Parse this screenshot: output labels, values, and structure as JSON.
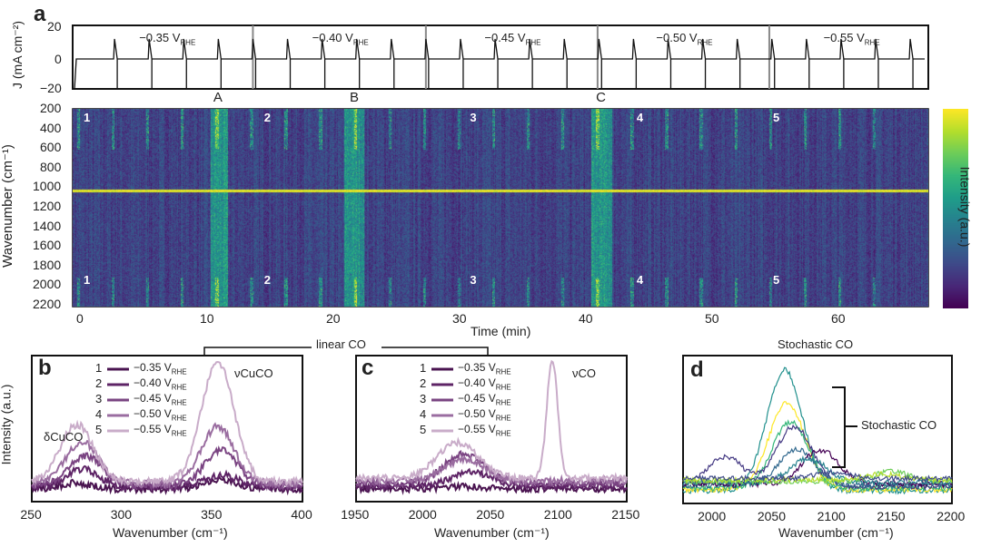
{
  "panel_letters": {
    "a": "a",
    "b": "b",
    "c": "c",
    "d": "d"
  },
  "colors": {
    "frame": "#111111",
    "separator": "#888888",
    "box": "#ffffff"
  },
  "chart_data": [
    {
      "id": "a-current",
      "type": "line",
      "ylabel": "J (mA cm⁻²)",
      "ylim": [
        -20,
        20
      ],
      "yticks": [
        "20",
        "0",
        "−20"
      ],
      "xlim": [
        0,
        67.5
      ],
      "potential_labels": [
        "−0.35 V",
        "−0.40 V",
        "−0.45 V",
        "−0.50 V",
        "−0.55 V"
      ],
      "potential_subscript": "RHE",
      "segment_boundaries_min": [
        13.7,
        27.4,
        41.0,
        54.6
      ],
      "pulse_period_min": 2.74,
      "pulse_peak": 13,
      "pulse_min": -20,
      "baseline": 0,
      "markers": [
        {
          "label": "A",
          "t": 11
        },
        {
          "label": "B",
          "t": 21.8
        },
        {
          "label": "C",
          "t": 41.3
        }
      ]
    },
    {
      "id": "a-heatmap",
      "type": "heatmap",
      "xlabel": "Time (min)",
      "ylabel": "Wavenumber (cm⁻¹)",
      "xticks": [
        "0",
        "10",
        "20",
        "30",
        "40",
        "50",
        "60"
      ],
      "yticks": [
        "200",
        "400",
        "600",
        "800",
        "1000",
        "1200",
        "1400",
        "1600",
        "1800",
        "2000",
        "2200"
      ],
      "xlim": [
        0,
        67.5
      ],
      "ylim": [
        200,
        2250
      ],
      "colorbar_label": "Intensity (a.u.)",
      "colormap": "viridis",
      "bright_band_min": 1050,
      "bright_columns": [
        {
          "t0": 10.3,
          "t1": 11.7
        },
        {
          "t0": 20.9,
          "t1": 22.5
        },
        {
          "t0": 40.5,
          "t1": 42.1
        }
      ],
      "boxes": [
        {
          "label": "1",
          "t0": 0,
          "t1": 2.5
        },
        {
          "label": "2",
          "t0": 14.3,
          "t1": 15.8
        },
        {
          "label": "3",
          "t0": 30.6,
          "t1": 32.6
        },
        {
          "label": "4",
          "t0": 43.8,
          "t1": 46.2
        },
        {
          "label": "5",
          "t0": 54.6,
          "t1": 57.3
        }
      ]
    },
    {
      "id": "b",
      "type": "line",
      "xlabel": "Wavenumber (cm⁻¹)",
      "ylabel": "Intensity (a.u.)",
      "xlim": [
        250,
        400
      ],
      "xticks": [
        "250",
        "300",
        "350",
        "400"
      ],
      "annotations": [
        "δCuCO",
        "νCuCO"
      ],
      "series": [
        {
          "num": "1",
          "name": "−0.35 V",
          "color": "#4a1450",
          "peaks": [
            [
              275,
              0.05
            ],
            [
              355,
              0.08
            ]
          ]
        },
        {
          "num": "2",
          "name": "−0.40 V",
          "color": "#5e2466",
          "peaks": [
            [
              278,
              0.15
            ],
            [
              355,
              0.1
            ]
          ]
        },
        {
          "num": "3",
          "name": "−0.45 V",
          "color": "#7a4482",
          "peaks": [
            [
              280,
              0.25
            ],
            [
              355,
              0.3
            ]
          ]
        },
        {
          "num": "4",
          "name": "−0.50 V",
          "color": "#9a6da0",
          "peaks": [
            [
              278,
              0.35
            ],
            [
              353,
              0.48
            ]
          ]
        },
        {
          "num": "5",
          "name": "−0.55 V",
          "color": "#c9acc9",
          "peaks": [
            [
              275,
              0.48
            ],
            [
              353,
              1.0
            ]
          ]
        }
      ]
    },
    {
      "id": "c",
      "type": "line",
      "xlabel": "Wavenumber (cm⁻¹)",
      "xlim": [
        1950,
        2150
      ],
      "xticks": [
        "1950",
        "2000",
        "2050",
        "2100",
        "2150"
      ],
      "annotations": [
        "νCO"
      ],
      "series": [
        {
          "num": "1",
          "name": "−0.35 V",
          "color": "#4a1450",
          "peaks": [
            [
              2030,
              0.02
            ]
          ]
        },
        {
          "num": "2",
          "name": "−0.40 V",
          "color": "#5e2466",
          "peaks": [
            [
              2035,
              0.12
            ]
          ]
        },
        {
          "num": "3",
          "name": "−0.45 V",
          "color": "#7a4482",
          "peaks": [
            [
              2030,
              0.25
            ]
          ]
        },
        {
          "num": "4",
          "name": "−0.50 V",
          "color": "#9a6da0",
          "peaks": [
            [
              2030,
              0.18
            ]
          ]
        },
        {
          "num": "5",
          "name": "−0.55 V",
          "color": "#c9acc9",
          "peaks": [
            [
              2025,
              0.3
            ],
            [
              2095,
              1.0
            ]
          ]
        }
      ]
    },
    {
      "id": "d",
      "type": "line",
      "title": "Stochastic CO",
      "xlabel": "Wavenumber (cm⁻¹)",
      "xlim": [
        1975,
        2200
      ],
      "xticks": [
        "2000",
        "2050",
        "2100",
        "2150",
        "2200"
      ],
      "annotations": [
        "Stochastic CO"
      ],
      "series": [
        {
          "color": "#21908d",
          "peaks": [
            [
              2060,
              1.0
            ]
          ]
        },
        {
          "color": "#fde725",
          "peaks": [
            [
              2062,
              0.72
            ]
          ]
        },
        {
          "color": "#35b779",
          "peaks": [
            [
              2065,
              0.55
            ]
          ]
        },
        {
          "color": "#443983",
          "peaks": [
            [
              2068,
              0.5
            ],
            [
              2010,
              0.25
            ]
          ]
        },
        {
          "color": "#31688e",
          "peaks": [
            [
              2070,
              0.3
            ]
          ]
        },
        {
          "color": "#440154",
          "peaks": [
            [
              2090,
              0.28
            ]
          ]
        },
        {
          "color": "#26828e",
          "peaks": [
            [
              2080,
              0.2
            ]
          ]
        },
        {
          "color": "#6ece58",
          "peaks": [
            [
              2150,
              0.08
            ]
          ]
        },
        {
          "color": "#b5de2b",
          "peaks": [
            [
              2140,
              0.05
            ]
          ]
        },
        {
          "color": "#3e4a89",
          "peaks": [
            [
              2100,
              0.05
            ]
          ]
        }
      ]
    }
  ],
  "linear_co_label": "linear CO"
}
